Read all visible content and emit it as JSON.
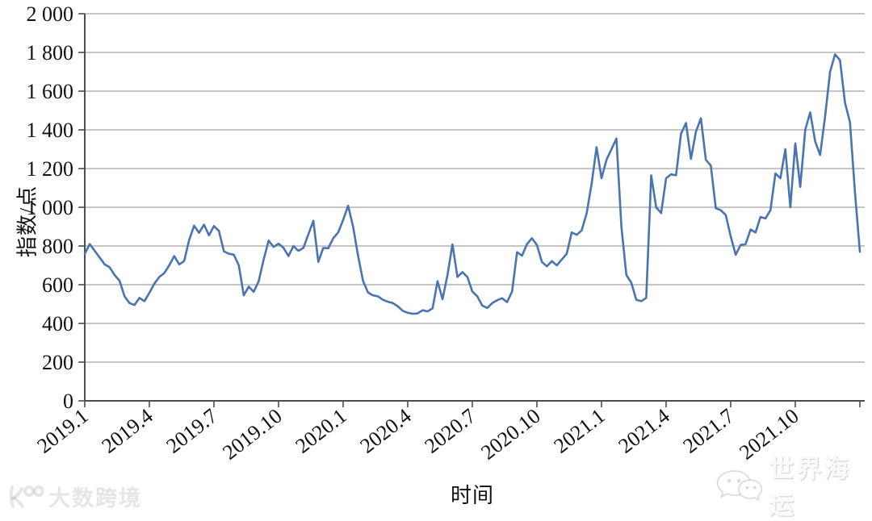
{
  "watermarks": {
    "bottom_left_text": "大数跨境",
    "bottom_left_icon": "k100-logo-icon",
    "bottom_right_text": "世界海运",
    "bottom_right_icon": "wechat-icon"
  },
  "chart_data": {
    "type": "line",
    "title": "",
    "xlabel": "时间",
    "ylabel": "指数/点",
    "frequency": "weekly",
    "x_start": "2019.1",
    "x_end": "2021.12",
    "x_tick_labels": [
      "2019.1",
      "2019.4",
      "2019.7",
      "2019.10",
      "2020.1",
      "2020.4",
      "2020.7",
      "2020.10",
      "2021.1",
      "2021.4",
      "2021.7",
      "2021.10"
    ],
    "x_ticks_months_per_label": 3,
    "y_ticks": [
      0,
      200,
      400,
      600,
      800,
      1000,
      1200,
      1400,
      1600,
      1800,
      2000
    ],
    "y_tick_labels": [
      "0",
      "200",
      "400",
      "600",
      "800",
      "1 000",
      "1 200",
      "1 400",
      "1 600",
      "1 800",
      "2 000"
    ],
    "ylim": [
      0,
      2000
    ],
    "grid": "horizontal-only",
    "legend": "none",
    "line_color": "#4A74B0",
    "axis_color": "#4d4d4d",
    "grid_color": "#8c8c8c",
    "values": [
      760,
      810,
      775,
      740,
      705,
      690,
      650,
      620,
      540,
      505,
      495,
      532,
      515,
      558,
      605,
      640,
      660,
      700,
      748,
      705,
      722,
      830,
      905,
      868,
      910,
      855,
      903,
      878,
      772,
      760,
      755,
      700,
      545,
      590,
      563,
      618,
      730,
      828,
      795,
      812,
      790,
      748,
      800,
      775,
      790,
      860,
      930,
      718,
      790,
      788,
      840,
      870,
      935,
      1008,
      900,
      750,
      620,
      560,
      545,
      540,
      522,
      512,
      505,
      488,
      465,
      455,
      450,
      452,
      468,
      462,
      478,
      618,
      525,
      650,
      808,
      640,
      665,
      640,
      565,
      540,
      492,
      480,
      505,
      520,
      530,
      510,
      565,
      768,
      750,
      810,
      840,
      805,
      718,
      695,
      722,
      700,
      730,
      760,
      870,
      858,
      880,
      968,
      1120,
      1310,
      1150,
      1245,
      1300,
      1355,
      900,
      650,
      610,
      522,
      515,
      532,
      1165,
      1000,
      970,
      1150,
      1170,
      1165,
      1380,
      1435,
      1250,
      1390,
      1460,
      1245,
      1215,
      995,
      985,
      960,
      850,
      755,
      805,
      810,
      885,
      870,
      950,
      942,
      985,
      1175,
      1150,
      1300,
      1000,
      1330,
      1105,
      1400,
      1490,
      1340,
      1270,
      1470,
      1700,
      1790,
      1760,
      1540,
      1440,
      1080,
      770
    ]
  }
}
